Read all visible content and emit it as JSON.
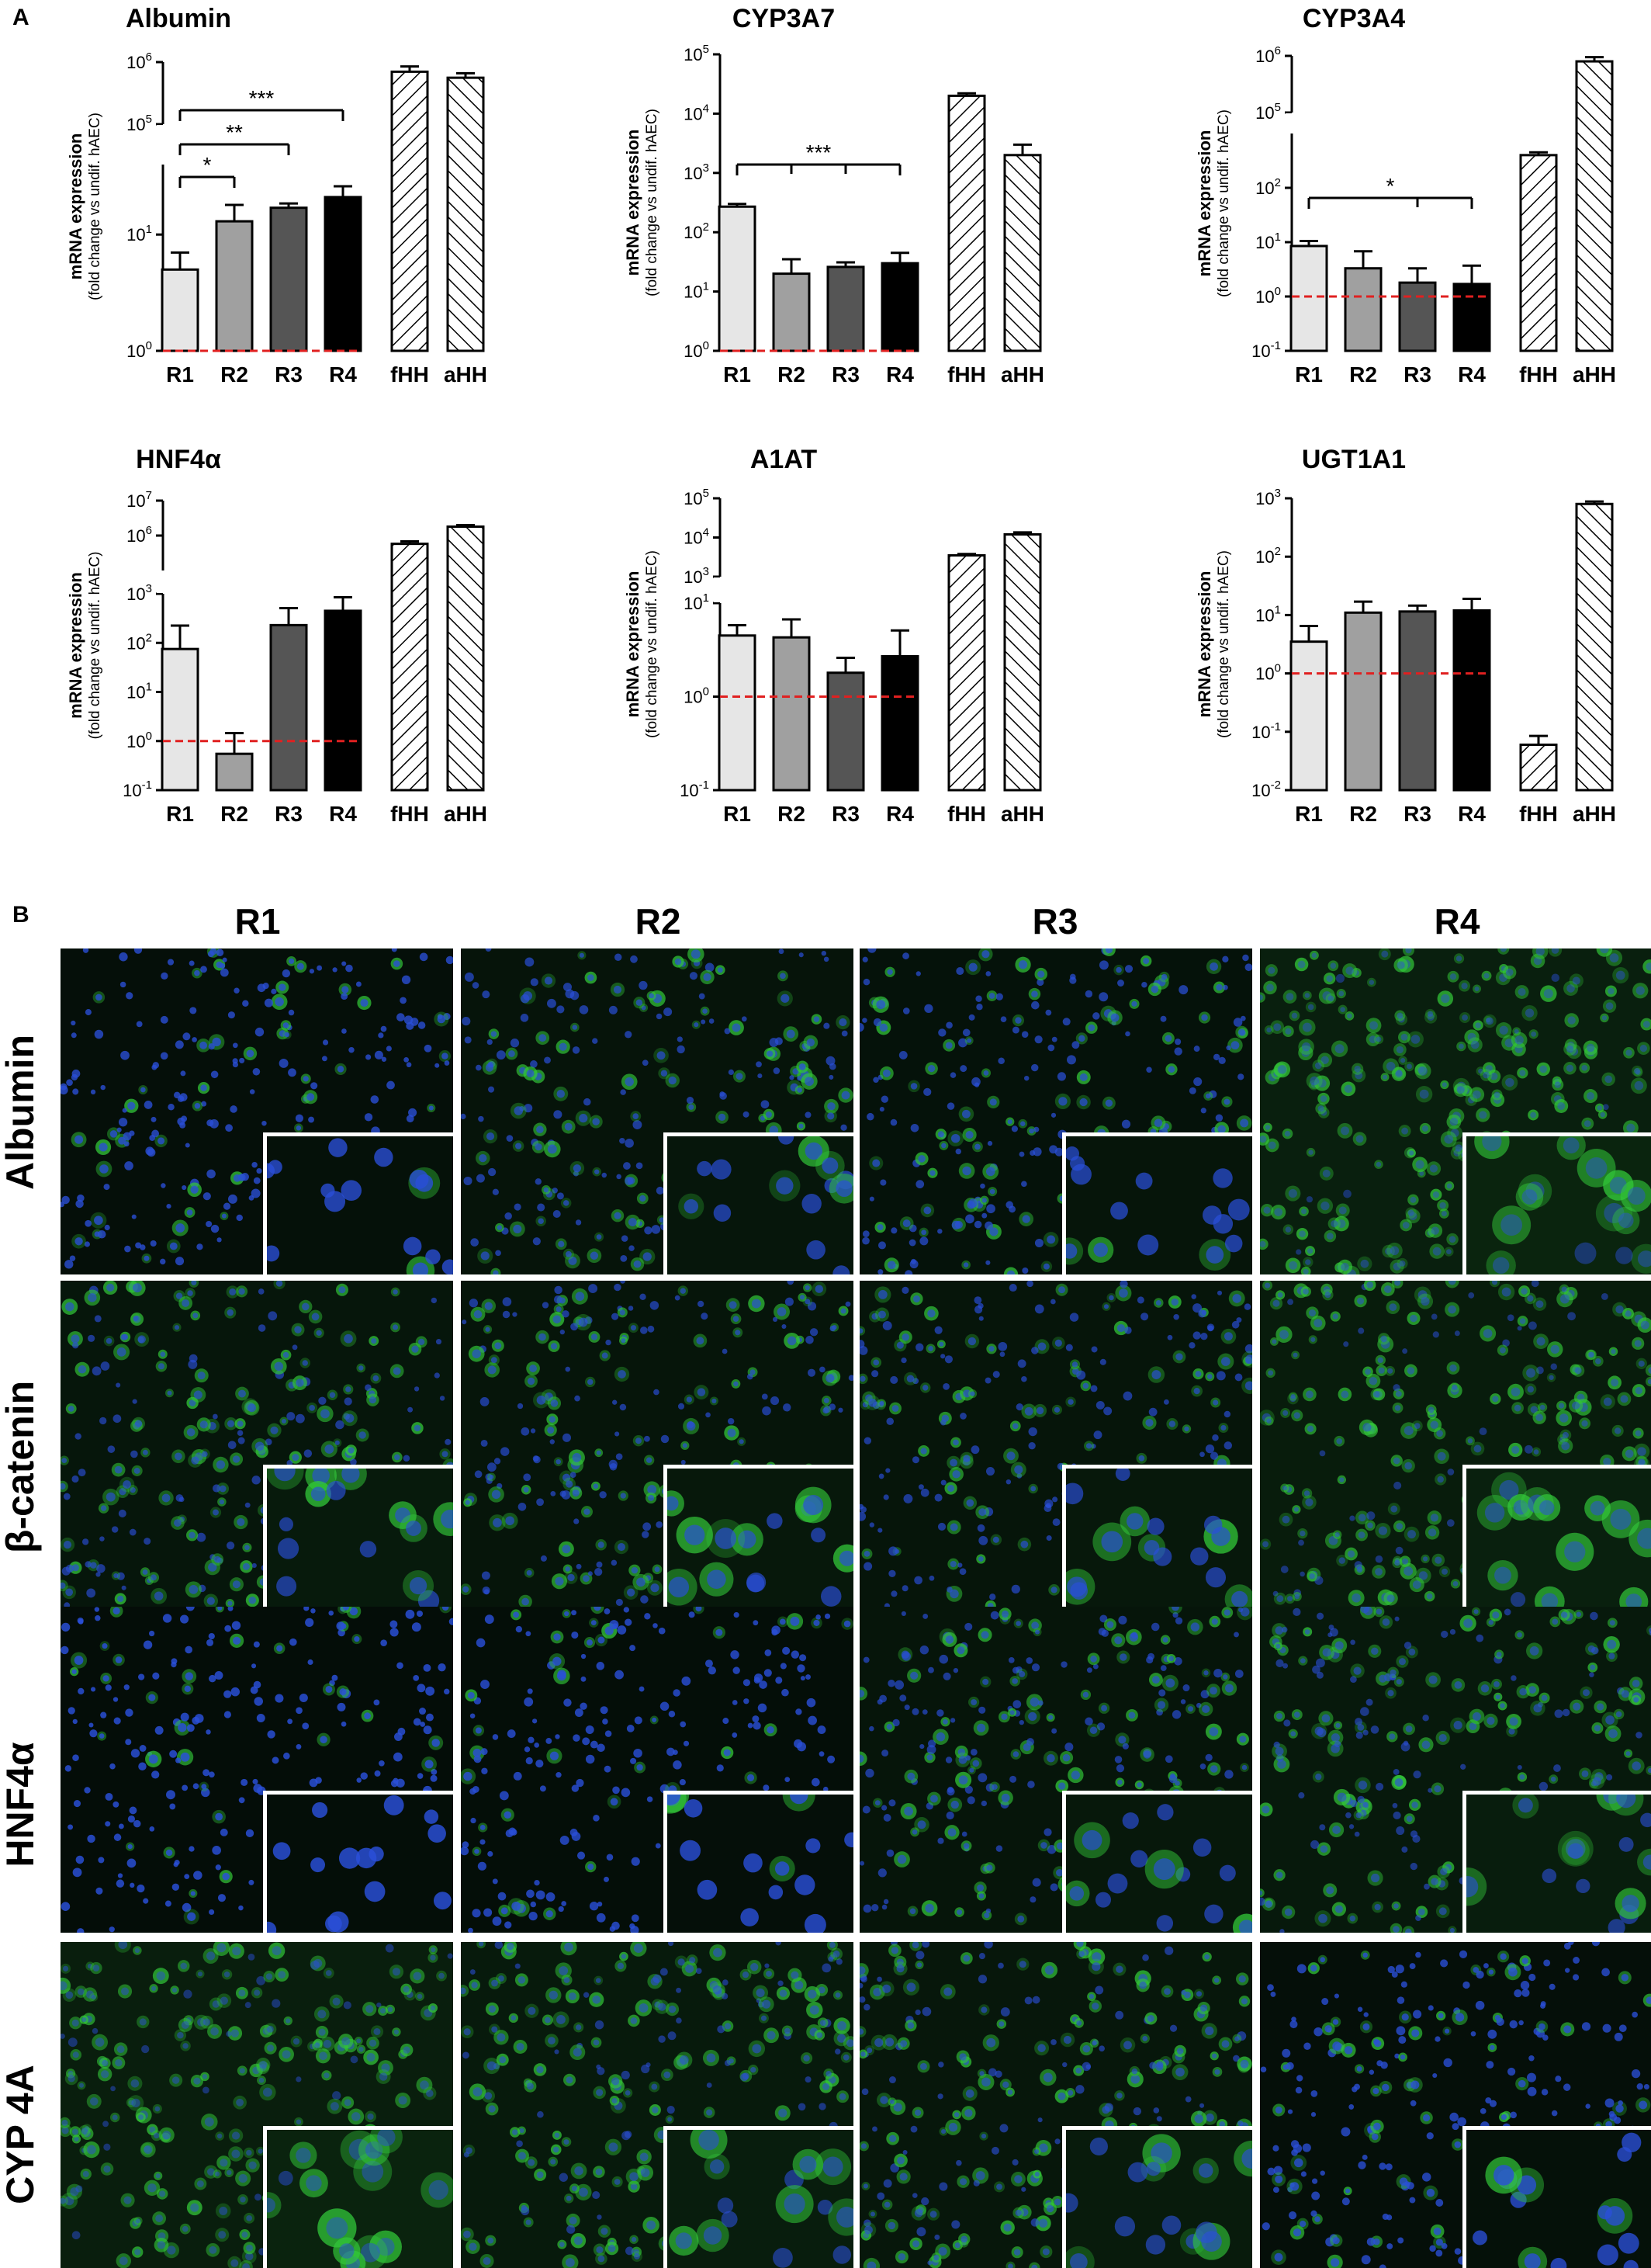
{
  "panel_labels": {
    "a": "A",
    "b": "B"
  },
  "chart_data": [
    {
      "type": "bar",
      "title": "Albumin",
      "ylabel": "mRNA expression",
      "ylabel2": "(fold change vs undif. hAEC)",
      "categories": [
        "R1",
        "R2",
        "R3",
        "R4",
        "fHH",
        "aHH"
      ],
      "values": [
        5,
        13,
        17,
        21,
        700000,
        560000
      ],
      "errors": [
        2,
        5,
        1.5,
        5,
        150000,
        100000
      ],
      "yscale": "log-broken",
      "segments": [
        {
          "ylim": [
            1,
            40
          ],
          "ticks": [
            {
              "v": 1,
              "b": "10",
              "e": "0"
            },
            {
              "v": 10,
              "b": "10",
              "e": "1"
            }
          ]
        },
        {
          "ylim": [
            100000,
            1000000
          ],
          "ticks": [
            {
              "v": 100000,
              "b": "10",
              "e": "5"
            },
            {
              "v": 1000000,
              "b": "10",
              "e": "6"
            }
          ]
        }
      ],
      "reference_line": 1,
      "significance": [
        {
          "from": "R1",
          "to": "R2",
          "label": "*"
        },
        {
          "from": "R1",
          "to": "R3",
          "label": "**"
        },
        {
          "from": "R1",
          "to": "R4",
          "label": "***"
        }
      ]
    },
    {
      "type": "bar",
      "title": "CYP3A7",
      "ylabel": "mRNA expression",
      "ylabel2": "(fold change vs undif. hAEC)",
      "categories": [
        "R1",
        "R2",
        "R3",
        "R4",
        "fHH",
        "aHH"
      ],
      "values": [
        270,
        20,
        26,
        30,
        20000,
        2000
      ],
      "errors": [
        30,
        15,
        5,
        15,
        2000,
        1000
      ],
      "yscale": "log",
      "segments": [
        {
          "ylim": [
            1,
            100000
          ],
          "ticks": [
            {
              "v": 1,
              "b": "10",
              "e": "0"
            },
            {
              "v": 10,
              "b": "10",
              "e": "1"
            },
            {
              "v": 100,
              "b": "10",
              "e": "2"
            },
            {
              "v": 1000,
              "b": "10",
              "e": "3"
            },
            {
              "v": 10000,
              "b": "10",
              "e": "4"
            },
            {
              "v": 100000,
              "b": "10",
              "e": "5"
            }
          ]
        }
      ],
      "reference_line": 1,
      "significance": [
        {
          "from": "R1",
          "to": "R4",
          "label": "***",
          "ticks": [
            "R2",
            "R3"
          ]
        }
      ]
    },
    {
      "type": "bar",
      "title": "CYP3A4",
      "ylabel": "mRNA expression",
      "ylabel2": "(fold change vs undif. hAEC)",
      "categories": [
        "R1",
        "R2",
        "R3",
        "R4",
        "fHH",
        "aHH"
      ],
      "values": [
        8.5,
        3.3,
        1.8,
        1.7,
        400,
        800000
      ],
      "errors": [
        2,
        3.5,
        1.5,
        2,
        50,
        150000
      ],
      "yscale": "log-broken",
      "segments": [
        {
          "ylim": [
            0.1,
            1000
          ],
          "ticks": [
            {
              "v": 0.1,
              "b": "10",
              "e": "-1"
            },
            {
              "v": 1,
              "b": "10",
              "e": "0"
            },
            {
              "v": 10,
              "b": "10",
              "e": "1"
            },
            {
              "v": 100,
              "b": "10",
              "e": "2"
            }
          ]
        },
        {
          "ylim": [
            100000,
            1000000
          ],
          "ticks": [
            {
              "v": 100000,
              "b": "10",
              "e": "5"
            },
            {
              "v": 1000000,
              "b": "10",
              "e": "6"
            }
          ]
        }
      ],
      "reference_line": 1,
      "significance": [
        {
          "from": "R1",
          "to": "R4",
          "label": "*",
          "ticks": [
            "R3"
          ]
        }
      ]
    },
    {
      "type": "bar",
      "title": "HNF4α",
      "ylabel": "mRNA expression",
      "ylabel2": "(fold change vs undif. hAEC)",
      "categories": [
        "R1",
        "R2",
        "R3",
        "R4",
        "fHH",
        "aHH"
      ],
      "values": [
        75,
        0.55,
        230,
        450,
        580000,
        1800000
      ],
      "errors": [
        150,
        0.9,
        280,
        400,
        100000,
        200000
      ],
      "yscale": "log-broken",
      "segments": [
        {
          "ylim": [
            0.1,
            1000
          ],
          "ticks": [
            {
              "v": 0.1,
              "b": "10",
              "e": "-1"
            },
            {
              "v": 1,
              "b": "10",
              "e": "0"
            },
            {
              "v": 10,
              "b": "10",
              "e": "1"
            },
            {
              "v": 100,
              "b": "10",
              "e": "2"
            },
            {
              "v": 1000,
              "b": "10",
              "e": "3"
            }
          ]
        },
        {
          "ylim": [
            100000,
            10000000
          ],
          "ticks": [
            {
              "v": 1000000,
              "b": "10",
              "e": "6"
            },
            {
              "v": 10000000,
              "b": "10",
              "e": "7"
            }
          ]
        }
      ],
      "reference_line": 1,
      "significance": []
    },
    {
      "type": "bar",
      "title": "A1AT",
      "ylabel": "mRNA expression",
      "ylabel2": "(fold change vs undif. hAEC)",
      "categories": [
        "R1",
        "R2",
        "R3",
        "R4",
        "fHH",
        "aHH"
      ],
      "values": [
        4.5,
        4.3,
        1.8,
        2.7,
        3500,
        12000
      ],
      "errors": [
        1.3,
        2.4,
        0.8,
        2.4,
        300,
        1500
      ],
      "yscale": "log-broken",
      "segments": [
        {
          "ylim": [
            0.1,
            10
          ],
          "ticks": [
            {
              "v": 0.1,
              "b": "10",
              "e": "-1"
            },
            {
              "v": 1,
              "b": "10",
              "e": "0"
            },
            {
              "v": 10,
              "b": "10",
              "e": "1"
            }
          ]
        },
        {
          "ylim": [
            1000,
            100000
          ],
          "ticks": [
            {
              "v": 1000,
              "b": "10",
              "e": "3"
            },
            {
              "v": 10000,
              "b": "10",
              "e": "4"
            },
            {
              "v": 100000,
              "b": "10",
              "e": "5"
            }
          ]
        }
      ],
      "reference_line": 1,
      "significance": []
    },
    {
      "type": "bar",
      "title": "UGT1A1",
      "ylabel": "mRNA expression",
      "ylabel2": "(fold change vs undif. hAEC)",
      "categories": [
        "R1",
        "R2",
        "R3",
        "R4",
        "fHH",
        "aHH"
      ],
      "values": [
        3.5,
        11,
        11.5,
        12,
        0.06,
        800
      ],
      "errors": [
        3,
        6,
        3,
        7,
        0.025,
        80
      ],
      "yscale": "log",
      "segments": [
        {
          "ylim": [
            0.01,
            1000
          ],
          "ticks": [
            {
              "v": 0.01,
              "b": "10",
              "e": "-2"
            },
            {
              "v": 0.1,
              "b": "10",
              "e": "-1"
            },
            {
              "v": 1,
              "b": "10",
              "e": "0"
            },
            {
              "v": 10,
              "b": "10",
              "e": "1"
            },
            {
              "v": 100,
              "b": "10",
              "e": "2"
            },
            {
              "v": 1000,
              "b": "10",
              "e": "3"
            }
          ]
        }
      ],
      "reference_line": 1,
      "significance": []
    }
  ],
  "micrographs": {
    "columns": [
      "R1",
      "R2",
      "R3",
      "R4"
    ],
    "rows": [
      "Albumin",
      "β-catenin",
      "HNF4α",
      "CYP 4A"
    ],
    "green_intensity": [
      [
        0.25,
        0.45,
        0.4,
        0.95
      ],
      [
        0.55,
        0.5,
        0.5,
        0.8
      ],
      [
        0.15,
        0.2,
        0.5,
        0.65
      ],
      [
        0.9,
        0.7,
        0.6,
        0.25
      ]
    ],
    "colors": {
      "nuclei": "#2a4fd8",
      "signal": "#33c93a",
      "background": "#040a08"
    }
  },
  "colors": {
    "bars": [
      "#e6e6e6",
      "#a0a0a0",
      "#555555",
      "#000000",
      "#ffffff",
      "#ffffff"
    ],
    "reference_line": "#e02020"
  }
}
